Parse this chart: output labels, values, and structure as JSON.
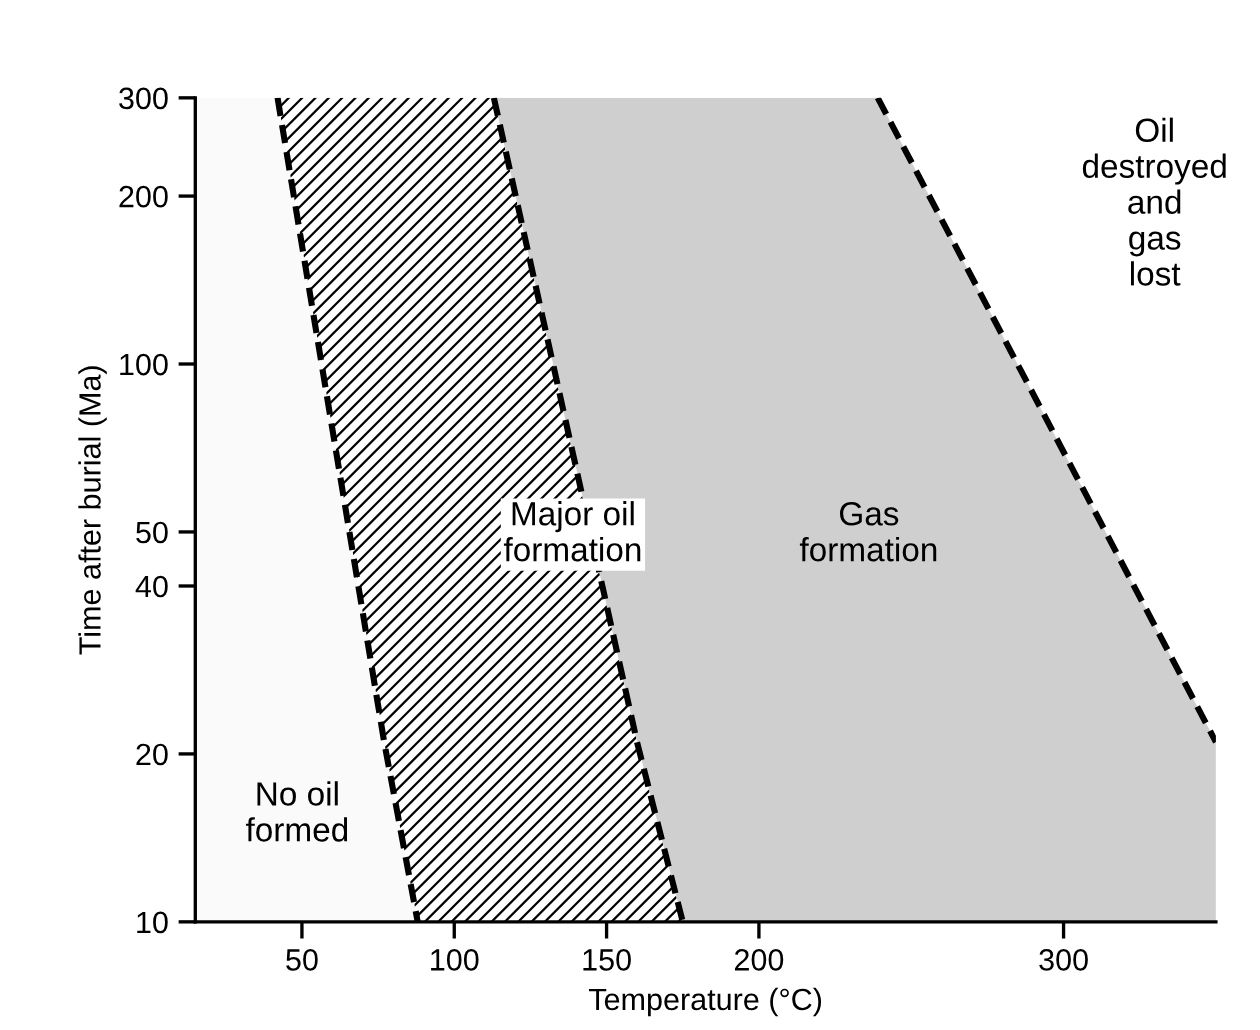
{
  "chart_data": {
    "type": "area",
    "orientation": "horizontal",
    "xlabel": "Temperature (°C)",
    "ylabel": "Time after burial (Ma)",
    "x": [
      300,
      21,
      10
    ],
    "xlim": [
      15,
      350
    ],
    "ylim": [
      10,
      300
    ],
    "xticks": [
      50,
      100,
      150,
      200,
      300
    ],
    "yticks": [
      10,
      20,
      40,
      50,
      100,
      200,
      300
    ],
    "log": "y",
    "grid": false,
    "legend": false,
    "stacked": true,
    "line_style": "dashed",
    "series": [
      {
        "values": [
          42,
          77,
          88
        ],
        "color": "#fafafa"
      },
      {
        "values": [
          71,
          83,
          87
        ],
        "color": "#000000"
      },
      {
        "values": [
          126,
          190,
          175
        ],
        "color": "#cfcfcf"
      }
    ],
    "annotations": [
      "No oil\nformed",
      "Major oil\nformation",
      "Gas\nformation",
      "Oil\ndestroyed\nand\ngas\nlost"
    ]
  }
}
